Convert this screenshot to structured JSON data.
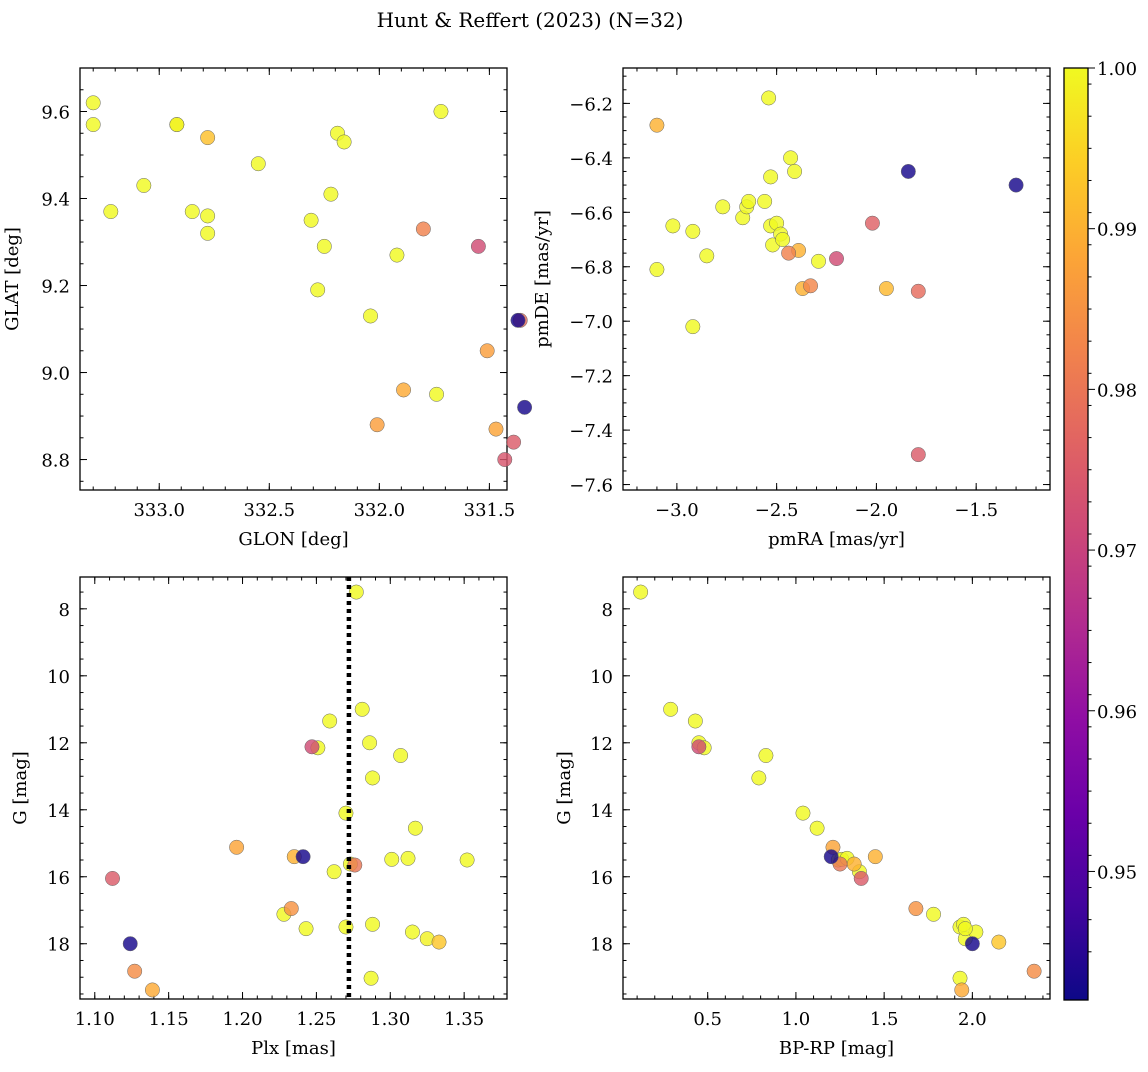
{
  "figure": {
    "title": "Hunt & Reffert (2023) (N=32)"
  },
  "colorbar": {
    "min": 0.942,
    "max": 1.0,
    "ticks": [
      0.95,
      0.96,
      0.97,
      0.98,
      0.99,
      1.0
    ],
    "tick_labels": [
      "0.95",
      "0.96",
      "0.97",
      "0.98",
      "0.99",
      "1.00"
    ],
    "colormap": "plasma",
    "colormap_stops": [
      "#0d0887",
      "#41049d",
      "#6a00a8",
      "#8f0da4",
      "#b12a90",
      "#cc4778",
      "#e16462",
      "#f2844b",
      "#fca636",
      "#fcce25",
      "#f0f921"
    ]
  },
  "chart_data": [
    {
      "type": "scatter",
      "id": "glon-glat",
      "xlabel": "GLON [deg]",
      "ylabel": "GLAT [deg]",
      "xlim": [
        331.42,
        333.36
      ],
      "ylim": [
        8.73,
        9.7
      ],
      "xaxis_inverted": true,
      "xticks": [
        331.5,
        332.0,
        332.5,
        333.0
      ],
      "xtick_labels": [
        "331.5",
        "332.0",
        "332.5",
        "333.0"
      ],
      "yticks": [
        8.8,
        9.0,
        9.2,
        9.4,
        9.6
      ],
      "ytick_labels": [
        "8.8",
        "9.0",
        "9.2",
        "9.4",
        "9.6"
      ],
      "points": [
        {
          "x": 333.3,
          "y": 9.62,
          "c": 1.0
        },
        {
          "x": 333.3,
          "y": 9.57,
          "c": 1.0
        },
        {
          "x": 333.22,
          "y": 9.37,
          "c": 1.0
        },
        {
          "x": 333.07,
          "y": 9.43,
          "c": 1.0
        },
        {
          "x": 332.92,
          "y": 9.57,
          "c": 0.999
        },
        {
          "x": 332.92,
          "y": 9.57,
          "c": 1.0
        },
        {
          "x": 332.85,
          "y": 9.37,
          "c": 1.0
        },
        {
          "x": 332.78,
          "y": 9.54,
          "c": 0.992
        },
        {
          "x": 332.78,
          "y": 9.36,
          "c": 1.0
        },
        {
          "x": 332.78,
          "y": 9.32,
          "c": 1.0
        },
        {
          "x": 332.55,
          "y": 9.48,
          "c": 1.0
        },
        {
          "x": 332.31,
          "y": 9.35,
          "c": 1.0
        },
        {
          "x": 332.28,
          "y": 9.19,
          "c": 1.0
        },
        {
          "x": 332.25,
          "y": 9.29,
          "c": 1.0
        },
        {
          "x": 332.22,
          "y": 9.41,
          "c": 1.0
        },
        {
          "x": 332.19,
          "y": 9.55,
          "c": 1.0
        },
        {
          "x": 332.16,
          "y": 9.53,
          "c": 1.0
        },
        {
          "x": 332.04,
          "y": 9.13,
          "c": 1.0
        },
        {
          "x": 332.01,
          "y": 8.88,
          "c": 0.987
        },
        {
          "x": 331.92,
          "y": 9.27,
          "c": 1.0
        },
        {
          "x": 331.89,
          "y": 8.96,
          "c": 0.989
        },
        {
          "x": 331.8,
          "y": 9.33,
          "c": 0.982
        },
        {
          "x": 331.74,
          "y": 8.95,
          "c": 1.0
        },
        {
          "x": 331.72,
          "y": 9.6,
          "c": 1.0
        },
        {
          "x": 331.55,
          "y": 9.29,
          "c": 0.972
        },
        {
          "x": 331.51,
          "y": 9.05,
          "c": 0.987
        },
        {
          "x": 331.47,
          "y": 8.87,
          "c": 0.988
        },
        {
          "x": 331.43,
          "y": 8.8,
          "c": 0.974
        },
        {
          "x": 331.39,
          "y": 8.84,
          "c": 0.975
        },
        {
          "x": 331.36,
          "y": 9.12,
          "c": 0.978
        },
        {
          "x": 331.37,
          "y": 9.12,
          "c": 0.943
        },
        {
          "x": 331.34,
          "y": 8.92,
          "c": 0.943
        }
      ]
    },
    {
      "type": "scatter",
      "id": "pmra-pmde",
      "xlabel": "pmRA [mas/yr]",
      "ylabel": "pmDE [mas/yr]",
      "xlim": [
        -3.27,
        -1.13
      ],
      "ylim": [
        -7.62,
        -6.07
      ],
      "xticks": [
        -3.0,
        -2.5,
        -2.0,
        -1.5
      ],
      "xtick_labels": [
        "−3.0",
        "−2.5",
        "−2.0",
        "−1.5"
      ],
      "yticks": [
        -7.6,
        -7.4,
        -7.2,
        -7.0,
        -6.8,
        -6.6,
        -6.4,
        -6.2
      ],
      "ytick_labels": [
        "−7.6",
        "−7.4",
        "−7.2",
        "−7.0",
        "−6.8",
        "−6.6",
        "−6.4",
        "−6.2"
      ],
      "points": [
        {
          "x": -3.1,
          "y": -6.28,
          "c": 0.99
        },
        {
          "x": -3.02,
          "y": -6.65,
          "c": 1.0
        },
        {
          "x": -2.92,
          "y": -6.67,
          "c": 1.0
        },
        {
          "x": -3.1,
          "y": -6.81,
          "c": 1.0
        },
        {
          "x": -2.92,
          "y": -7.02,
          "c": 1.0
        },
        {
          "x": -2.85,
          "y": -6.76,
          "c": 1.0
        },
        {
          "x": -2.77,
          "y": -6.58,
          "c": 1.0
        },
        {
          "x": -2.67,
          "y": -6.62,
          "c": 1.0
        },
        {
          "x": -2.65,
          "y": -6.58,
          "c": 1.0
        },
        {
          "x": -2.64,
          "y": -6.56,
          "c": 1.0
        },
        {
          "x": -2.56,
          "y": -6.56,
          "c": 1.0
        },
        {
          "x": -2.54,
          "y": -6.18,
          "c": 1.0
        },
        {
          "x": -2.53,
          "y": -6.47,
          "c": 1.0
        },
        {
          "x": -2.53,
          "y": -6.65,
          "c": 1.0
        },
        {
          "x": -2.52,
          "y": -6.72,
          "c": 1.0
        },
        {
          "x": -2.5,
          "y": -6.64,
          "c": 1.0
        },
        {
          "x": -2.48,
          "y": -6.68,
          "c": 1.0
        },
        {
          "x": -2.47,
          "y": -6.7,
          "c": 1.0
        },
        {
          "x": -2.43,
          "y": -6.4,
          "c": 1.0
        },
        {
          "x": -2.41,
          "y": -6.45,
          "c": 1.0
        },
        {
          "x": -2.44,
          "y": -6.75,
          "c": 0.982
        },
        {
          "x": -2.39,
          "y": -6.74,
          "c": 0.99
        },
        {
          "x": -2.37,
          "y": -6.88,
          "c": 0.99
        },
        {
          "x": -2.33,
          "y": -6.87,
          "c": 0.983
        },
        {
          "x": -2.29,
          "y": -6.78,
          "c": 1.0
        },
        {
          "x": -2.2,
          "y": -6.77,
          "c": 0.972
        },
        {
          "x": -2.02,
          "y": -6.64,
          "c": 0.976
        },
        {
          "x": -1.95,
          "y": -6.88,
          "c": 0.991
        },
        {
          "x": -1.84,
          "y": -6.45,
          "c": 0.943
        },
        {
          "x": -1.79,
          "y": -6.89,
          "c": 0.978
        },
        {
          "x": -1.79,
          "y": -7.49,
          "c": 0.975
        },
        {
          "x": -1.3,
          "y": -6.5,
          "c": 0.943
        }
      ]
    },
    {
      "type": "scatter",
      "id": "plx-g",
      "xlabel": "Plx [mas]",
      "ylabel": "G [mag]",
      "xlim": [
        1.09,
        1.379
      ],
      "ylim": [
        19.65,
        7.05
      ],
      "yaxis_inverted": true,
      "reference_line": {
        "orientation": "vertical",
        "x": 1.272,
        "style": "dotted"
      },
      "xticks": [
        1.1,
        1.15,
        1.2,
        1.25,
        1.3,
        1.35
      ],
      "xtick_labels": [
        "1.10",
        "1.15",
        "1.20",
        "1.25",
        "1.30",
        "1.35"
      ],
      "yticks": [
        8,
        10,
        12,
        14,
        16,
        18
      ],
      "ytick_labels": [
        "8",
        "10",
        "12",
        "14",
        "16",
        "18"
      ],
      "points": [
        {
          "x": 1.112,
          "y": 16.05,
          "c": 0.975
        },
        {
          "x": 1.124,
          "y": 18.0,
          "c": 0.943
        },
        {
          "x": 1.127,
          "y": 18.82,
          "c": 0.984
        },
        {
          "x": 1.139,
          "y": 19.38,
          "c": 0.989
        },
        {
          "x": 1.196,
          "y": 15.12,
          "c": 0.988
        },
        {
          "x": 1.228,
          "y": 17.12,
          "c": 1.0
        },
        {
          "x": 1.233,
          "y": 16.95,
          "c": 0.985
        },
        {
          "x": 1.235,
          "y": 15.4,
          "c": 0.99
        },
        {
          "x": 1.241,
          "y": 15.4,
          "c": 0.943
        },
        {
          "x": 1.243,
          "y": 17.55,
          "c": 1.0
        },
        {
          "x": 1.247,
          "y": 12.12,
          "c": 0.972
        },
        {
          "x": 1.251,
          "y": 12.15,
          "c": 1.0
        },
        {
          "x": 1.259,
          "y": 11.35,
          "c": 1.0
        },
        {
          "x": 1.262,
          "y": 15.85,
          "c": 1.0
        },
        {
          "x": 1.27,
          "y": 14.1,
          "c": 1.0
        },
        {
          "x": 1.27,
          "y": 17.5,
          "c": 1.0
        },
        {
          "x": 1.273,
          "y": 15.62,
          "c": 1.0
        },
        {
          "x": 1.276,
          "y": 15.65,
          "c": 0.98
        },
        {
          "x": 1.277,
          "y": 7.5,
          "c": 1.0
        },
        {
          "x": 1.281,
          "y": 11.0,
          "c": 1.0
        },
        {
          "x": 1.286,
          "y": 12.0,
          "c": 1.0
        },
        {
          "x": 1.288,
          "y": 13.05,
          "c": 1.0
        },
        {
          "x": 1.288,
          "y": 17.42,
          "c": 1.0
        },
        {
          "x": 1.287,
          "y": 19.03,
          "c": 1.0
        },
        {
          "x": 1.301,
          "y": 15.48,
          "c": 1.0
        },
        {
          "x": 1.307,
          "y": 12.38,
          "c": 1.0
        },
        {
          "x": 1.312,
          "y": 15.45,
          "c": 1.0
        },
        {
          "x": 1.315,
          "y": 17.65,
          "c": 1.0
        },
        {
          "x": 1.317,
          "y": 14.55,
          "c": 1.0
        },
        {
          "x": 1.325,
          "y": 17.85,
          "c": 0.999
        },
        {
          "x": 1.333,
          "y": 17.95,
          "c": 0.993
        },
        {
          "x": 1.352,
          "y": 15.5,
          "c": 1.0
        }
      ]
    },
    {
      "type": "scatter",
      "id": "bprp-g",
      "xlabel": "BP-RP [mag]",
      "ylabel": "G [mag]",
      "xlim": [
        0.02,
        2.44
      ],
      "ylim": [
        19.65,
        7.05
      ],
      "yaxis_inverted": true,
      "xticks": [
        0.5,
        1.0,
        1.5,
        2.0
      ],
      "xtick_labels": [
        "0.5",
        "1.0",
        "1.5",
        "2.0"
      ],
      "yticks": [
        8,
        10,
        12,
        14,
        16,
        18
      ],
      "ytick_labels": [
        "8",
        "10",
        "12",
        "14",
        "16",
        "18"
      ],
      "points": [
        {
          "x": 0.12,
          "y": 7.5,
          "c": 1.0
        },
        {
          "x": 0.29,
          "y": 11.0,
          "c": 1.0
        },
        {
          "x": 0.43,
          "y": 11.35,
          "c": 1.0
        },
        {
          "x": 0.45,
          "y": 12.12,
          "c": 0.972
        },
        {
          "x": 0.45,
          "y": 12.0,
          "c": 1.0
        },
        {
          "x": 0.48,
          "y": 12.15,
          "c": 1.0
        },
        {
          "x": 0.79,
          "y": 13.05,
          "c": 1.0
        },
        {
          "x": 0.83,
          "y": 12.38,
          "c": 1.0
        },
        {
          "x": 1.04,
          "y": 14.1,
          "c": 1.0
        },
        {
          "x": 1.12,
          "y": 14.55,
          "c": 1.0
        },
        {
          "x": 1.2,
          "y": 15.4,
          "c": 0.943
        },
        {
          "x": 1.21,
          "y": 15.12,
          "c": 0.988
        },
        {
          "x": 1.24,
          "y": 15.5,
          "c": 1.0
        },
        {
          "x": 1.25,
          "y": 15.62,
          "c": 0.98
        },
        {
          "x": 1.26,
          "y": 15.48,
          "c": 1.0
        },
        {
          "x": 1.29,
          "y": 15.45,
          "c": 1.0
        },
        {
          "x": 1.33,
          "y": 15.62,
          "c": 0.99
        },
        {
          "x": 1.36,
          "y": 15.85,
          "c": 1.0
        },
        {
          "x": 1.37,
          "y": 16.05,
          "c": 0.975
        },
        {
          "x": 1.45,
          "y": 15.4,
          "c": 0.99
        },
        {
          "x": 1.68,
          "y": 16.95,
          "c": 0.985
        },
        {
          "x": 1.78,
          "y": 17.12,
          "c": 1.0
        },
        {
          "x": 1.93,
          "y": 17.5,
          "c": 1.0
        },
        {
          "x": 1.95,
          "y": 17.42,
          "c": 1.0
        },
        {
          "x": 1.96,
          "y": 17.85,
          "c": 1.0
        },
        {
          "x": 2.0,
          "y": 18.0,
          "c": 0.943
        },
        {
          "x": 2.02,
          "y": 17.65,
          "c": 1.0
        },
        {
          "x": 1.93,
          "y": 19.03,
          "c": 1.0
        },
        {
          "x": 1.94,
          "y": 19.38,
          "c": 0.989
        },
        {
          "x": 2.15,
          "y": 17.95,
          "c": 0.993
        },
        {
          "x": 2.35,
          "y": 18.82,
          "c": 0.984
        },
        {
          "x": 1.96,
          "y": 17.55,
          "c": 1.0
        }
      ]
    }
  ]
}
